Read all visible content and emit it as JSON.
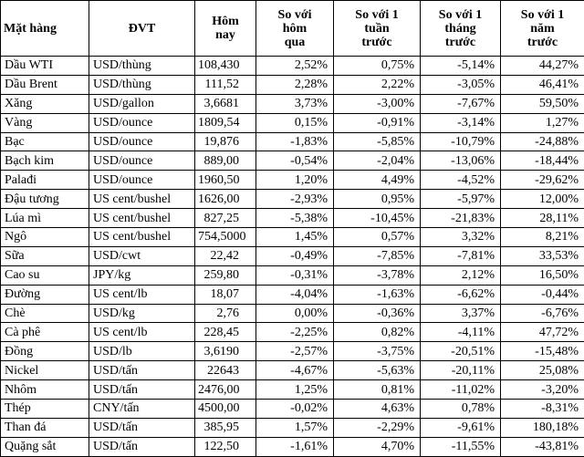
{
  "table": {
    "header": [
      [
        "Mặt hàng"
      ],
      [
        "ĐVT"
      ],
      [
        "Hôm",
        "nay"
      ],
      [
        "So với",
        "hôm",
        "qua"
      ],
      [
        "So với 1",
        "tuần",
        "trước"
      ],
      [
        "So với 1",
        "tháng",
        "trước"
      ],
      [
        "So với 1",
        "năm",
        "trước"
      ]
    ],
    "rows": [
      [
        "Dầu WTI",
        "USD/thùng",
        "108,430",
        "2,52%",
        "0,75%",
        "-5,14%",
        "44,27%"
      ],
      [
        "Dầu Brent",
        "USD/thùng",
        "111,52",
        "2,28%",
        "2,22%",
        "-3,05%",
        "46,41%"
      ],
      [
        "Xăng",
        "USD/gallon",
        "3,6681",
        "3,73%",
        "-3,00%",
        "-7,67%",
        "59,50%"
      ],
      [
        "Vàng",
        "USD/ounce",
        "1809,54",
        "0,15%",
        "-0,91%",
        "-3,14%",
        "1,27%"
      ],
      [
        "Bạc",
        "USD/ounce",
        "19,876",
        "-1,83%",
        "-5,85%",
        "-10,79%",
        "-24,88%"
      ],
      [
        "Bạch kim",
        "USD/ounce",
        "889,00",
        "-0,54%",
        "-2,04%",
        "-13,06%",
        "-18,44%"
      ],
      [
        "Palađi",
        "USD/ounce",
        "1960,50",
        "1,20%",
        "4,49%",
        "-4,52%",
        "-29,62%"
      ],
      [
        "Đậu tương",
        "US cent/bushel",
        "1626,00",
        "-2,93%",
        "0,95%",
        "-5,97%",
        "12,00%"
      ],
      [
        "Lúa mì",
        "US cent/bushel",
        "827,25",
        "-5,38%",
        "-10,45%",
        "-21,83%",
        "28,11%"
      ],
      [
        "Ngô",
        "US cent/bushel",
        "754,5000",
        "1,45%",
        "0,57%",
        "3,32%",
        "8,21%"
      ],
      [
        "Sữa",
        "USD/cwt",
        "22,42",
        "-0,49%",
        "-7,85%",
        "-7,81%",
        "33,53%"
      ],
      [
        "Cao su",
        "JPY/kg",
        "259,80",
        "-0,31%",
        "-3,78%",
        "2,12%",
        "16,50%"
      ],
      [
        "Đường",
        "US cent/lb",
        "18,07",
        "-4,04%",
        "-1,63%",
        "-6,62%",
        "-0,44%"
      ],
      [
        "Chè",
        "USD/kg",
        "2,76",
        "0,00%",
        "-0,36%",
        "3,37%",
        "-6,76%"
      ],
      [
        "Cà phê",
        "US cent/lb",
        "228,45",
        "-2,25%",
        "0,82%",
        "-4,11%",
        "47,72%"
      ],
      [
        "Đồng",
        "USD/lb",
        "3,6190",
        "-2,57%",
        "-3,75%",
        "-20,51%",
        "-15,48%"
      ],
      [
        "Nickel",
        "USD/tấn",
        "22643",
        "-4,67%",
        "-5,63%",
        "-20,11%",
        "25,08%"
      ],
      [
        "Nhôm",
        "USD/tấn",
        "2476,00",
        "1,25%",
        "0,81%",
        "-11,02%",
        "-3,20%"
      ],
      [
        "Thép",
        "CNY/tấn",
        "4500,00",
        "-0,02%",
        "4,63%",
        "0,78%",
        "-8,31%"
      ],
      [
        "Than đá",
        "USD/tấn",
        "385,95",
        "1,57%",
        "-2,29%",
        "-9,61%",
        "180,18%"
      ],
      [
        "Quặng sắt",
        "USD/tấn",
        "122,50",
        "-1,61%",
        "4,70%",
        "-11,55%",
        "-43,81%"
      ]
    ]
  }
}
